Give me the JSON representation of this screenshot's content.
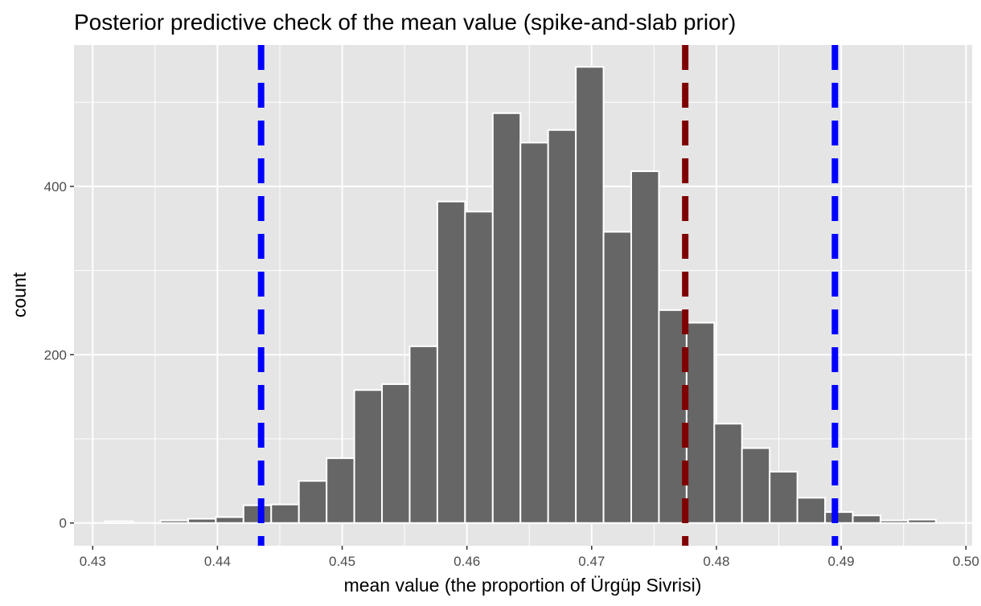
{
  "chart_data": {
    "type": "bar",
    "title": "Posterior predictive check of the mean value (spike-and-slab prior)",
    "xlabel": "mean value (the proportion of Ürgüp Sivrisi)",
    "ylabel": "count",
    "xlim": [
      0.4285,
      0.5005
    ],
    "ylim": [
      -27,
      568
    ],
    "x_ticks": [
      0.43,
      0.44,
      0.45,
      0.46,
      0.47,
      0.48,
      0.49,
      0.5
    ],
    "x_tick_labels": [
      "0.43",
      "0.44",
      "0.45",
      "0.46",
      "0.47",
      "0.48",
      "0.49",
      "0.50"
    ],
    "y_ticks": [
      0,
      200,
      400
    ],
    "y_tick_labels": [
      "0",
      "200",
      "400"
    ],
    "grid": true,
    "background": "#e5e5e5",
    "bar_fill": "#666666",
    "bar_outline": "#ffffff",
    "bin_width": 0.00222,
    "bin_centers": [
      0.4321,
      0.43432,
      0.43654,
      0.43876,
      0.44098,
      0.4432,
      0.44542,
      0.44764,
      0.44986,
      0.45208,
      0.4543,
      0.45652,
      0.45874,
      0.46096,
      0.46318,
      0.4654,
      0.46762,
      0.46984,
      0.47206,
      0.47428,
      0.4765,
      0.47872,
      0.48094,
      0.48316,
      0.48538,
      0.4876,
      0.48982,
      0.49204,
      0.49426,
      0.49648
    ],
    "counts": [
      2,
      0,
      3,
      5,
      7,
      21,
      22,
      50,
      77,
      158,
      165,
      210,
      382,
      370,
      487,
      452,
      467,
      542,
      346,
      418,
      253,
      238,
      118,
      89,
      61,
      30,
      13,
      9,
      3,
      4
    ],
    "vlines": [
      {
        "x": 0.4435,
        "color": "#0000ff",
        "linetype": "dashed"
      },
      {
        "x": 0.4895,
        "color": "#0000ff",
        "linetype": "dashed"
      },
      {
        "x": 0.4775,
        "color": "#7f0000",
        "linetype": "dashed"
      }
    ]
  }
}
